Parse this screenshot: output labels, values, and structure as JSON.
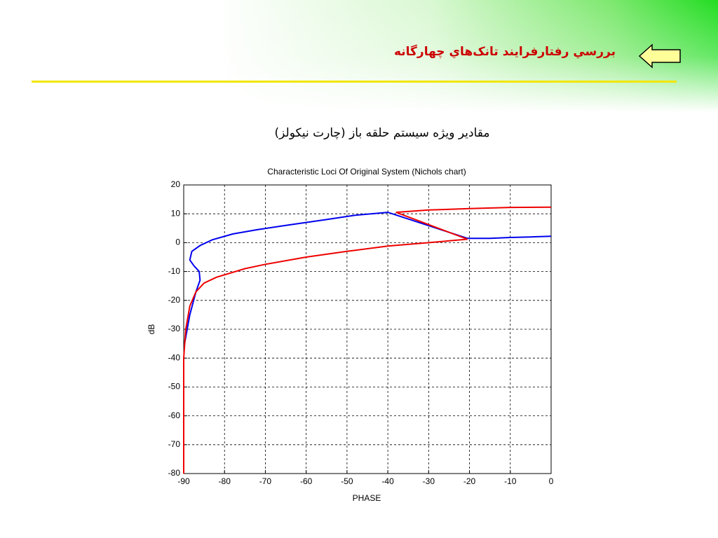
{
  "header": {
    "title": "بررسي رفتارفرايند تانک‌هاي چهارگانه"
  },
  "subtitle": "مقادير ويژه سيستم حلقه باز (چارت نيکولز)",
  "chart_data": {
    "type": "line",
    "title": "Characteristic Loci Of Original System (Nichols chart)",
    "x_label": "PHASE",
    "y_label": "dB",
    "xlim": [
      -90,
      0
    ],
    "ylim": [
      -80,
      20
    ],
    "xticks": [
      -90,
      -80,
      -70,
      -60,
      -50,
      -40,
      -30,
      -20,
      -10,
      0
    ],
    "yticks": [
      -80,
      -70,
      -60,
      -50,
      -40,
      -30,
      -20,
      -10,
      0,
      10,
      20
    ],
    "grid": true,
    "series": [
      {
        "color": "#0000ee",
        "x": [
          -89.8,
          -88.5,
          -87,
          -86,
          -86.2,
          -87.5,
          -88.5,
          -88,
          -86,
          -83,
          -78,
          -72,
          -65,
          -55,
          -48,
          -40,
          -20.5,
          -15,
          -10,
          -5,
          0
        ],
        "values": [
          -35,
          -25,
          -17,
          -13,
          -10,
          -8,
          -6,
          -3,
          -1,
          1,
          3,
          4.5,
          6,
          8,
          9.5,
          10.5,
          1.5,
          1.5,
          1.8,
          2,
          2.2
        ]
      },
      {
        "color": "#ee0000",
        "x": [
          -90,
          -90,
          -89.5,
          -88.5,
          -87,
          -85,
          -82,
          -75,
          -70,
          -60,
          -50,
          -40,
          -30,
          -20.5,
          -38,
          -30,
          -20,
          -10,
          0
        ],
        "values": [
          -80,
          -40,
          -30,
          -22,
          -17,
          -14,
          -12,
          -9,
          -7.5,
          -5,
          -3,
          -1.2,
          0,
          1.2,
          10.5,
          11.3,
          11.8,
          12.2,
          12.3
        ]
      }
    ]
  }
}
